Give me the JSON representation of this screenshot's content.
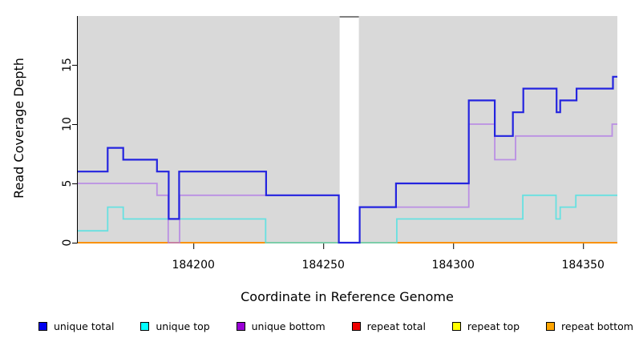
{
  "chart_data": {
    "type": "line",
    "subtype": "step",
    "title": "",
    "xlabel": "Coordinate in Reference Genome",
    "ylabel": "Read Coverage Depth",
    "xlim": [
      184155.5,
      184363.2
    ],
    "ylim": [
      0,
      19.12
    ],
    "xticks": [
      184200,
      184250,
      184300,
      184350
    ],
    "yticks": [
      0,
      5,
      10,
      15
    ],
    "panel_color": "#d9d9d9",
    "gap_region": [
      184256.3,
      184263.7
    ],
    "gap_top_line_color": "#808080",
    "legend_position": "bottom",
    "grid": false,
    "series": [
      {
        "name": "unique total",
        "legend_color": "#0000EE",
        "line_color": "#2424DF",
        "width": 2.2,
        "opacity": 1,
        "z": 6,
        "points": [
          [
            184155.5,
            6
          ],
          [
            184167,
            8
          ],
          [
            184173,
            7
          ],
          [
            184186,
            6
          ],
          [
            184190.5,
            2
          ],
          [
            184194.5,
            6
          ],
          [
            184228,
            4
          ],
          [
            184256,
            0
          ],
          [
            184264,
            3
          ],
          [
            184278,
            5
          ],
          [
            184306,
            12
          ],
          [
            184316,
            9
          ],
          [
            184323,
            11
          ],
          [
            184327,
            13
          ],
          [
            184339.8,
            11
          ],
          [
            184341.2,
            12
          ],
          [
            184347.5,
            13
          ],
          [
            184361.5,
            14
          ]
        ]
      },
      {
        "name": "unique top",
        "legend_color": "#00FFFF",
        "line_color": "#52E2E2",
        "width": 1.8,
        "opacity": 0.85,
        "z": 4,
        "points": [
          [
            184155.5,
            1
          ],
          [
            184167,
            3
          ],
          [
            184173,
            2
          ],
          [
            184227.8,
            0
          ],
          [
            184278.3,
            2
          ],
          [
            184326.8,
            4
          ],
          [
            184339.6,
            2
          ],
          [
            184341.2,
            3
          ],
          [
            184347.2,
            4
          ]
        ]
      },
      {
        "name": "unique bottom",
        "legend_color": "#9A00D6",
        "line_color": "#B27CE6",
        "width": 1.8,
        "opacity": 0.8,
        "z": 5,
        "points": [
          [
            184155.5,
            5
          ],
          [
            184186,
            4
          ],
          [
            184190.3,
            0
          ],
          [
            184194.7,
            4
          ],
          [
            184256,
            0
          ],
          [
            184264,
            3
          ],
          [
            184306,
            10
          ],
          [
            184316,
            7
          ],
          [
            184324,
            9
          ],
          [
            184361.2,
            10
          ]
        ]
      },
      {
        "name": "repeat total",
        "legend_color": "#EE0000",
        "line_color": "#DD0000",
        "width": 1.6,
        "opacity": 1,
        "z": 1,
        "points": [
          [
            184155.5,
            0
          ]
        ]
      },
      {
        "name": "repeat top",
        "legend_color": "#FFFF00",
        "line_color": "#F2E500",
        "width": 1.6,
        "opacity": 1,
        "z": 2,
        "points": [
          [
            184155.5,
            0
          ]
        ]
      },
      {
        "name": "repeat bottom",
        "legend_color": "#FFA500",
        "line_color": "#FF9100",
        "width": 1.8,
        "opacity": 1,
        "z": 3,
        "points": [
          [
            184155.5,
            0
          ]
        ]
      }
    ]
  }
}
